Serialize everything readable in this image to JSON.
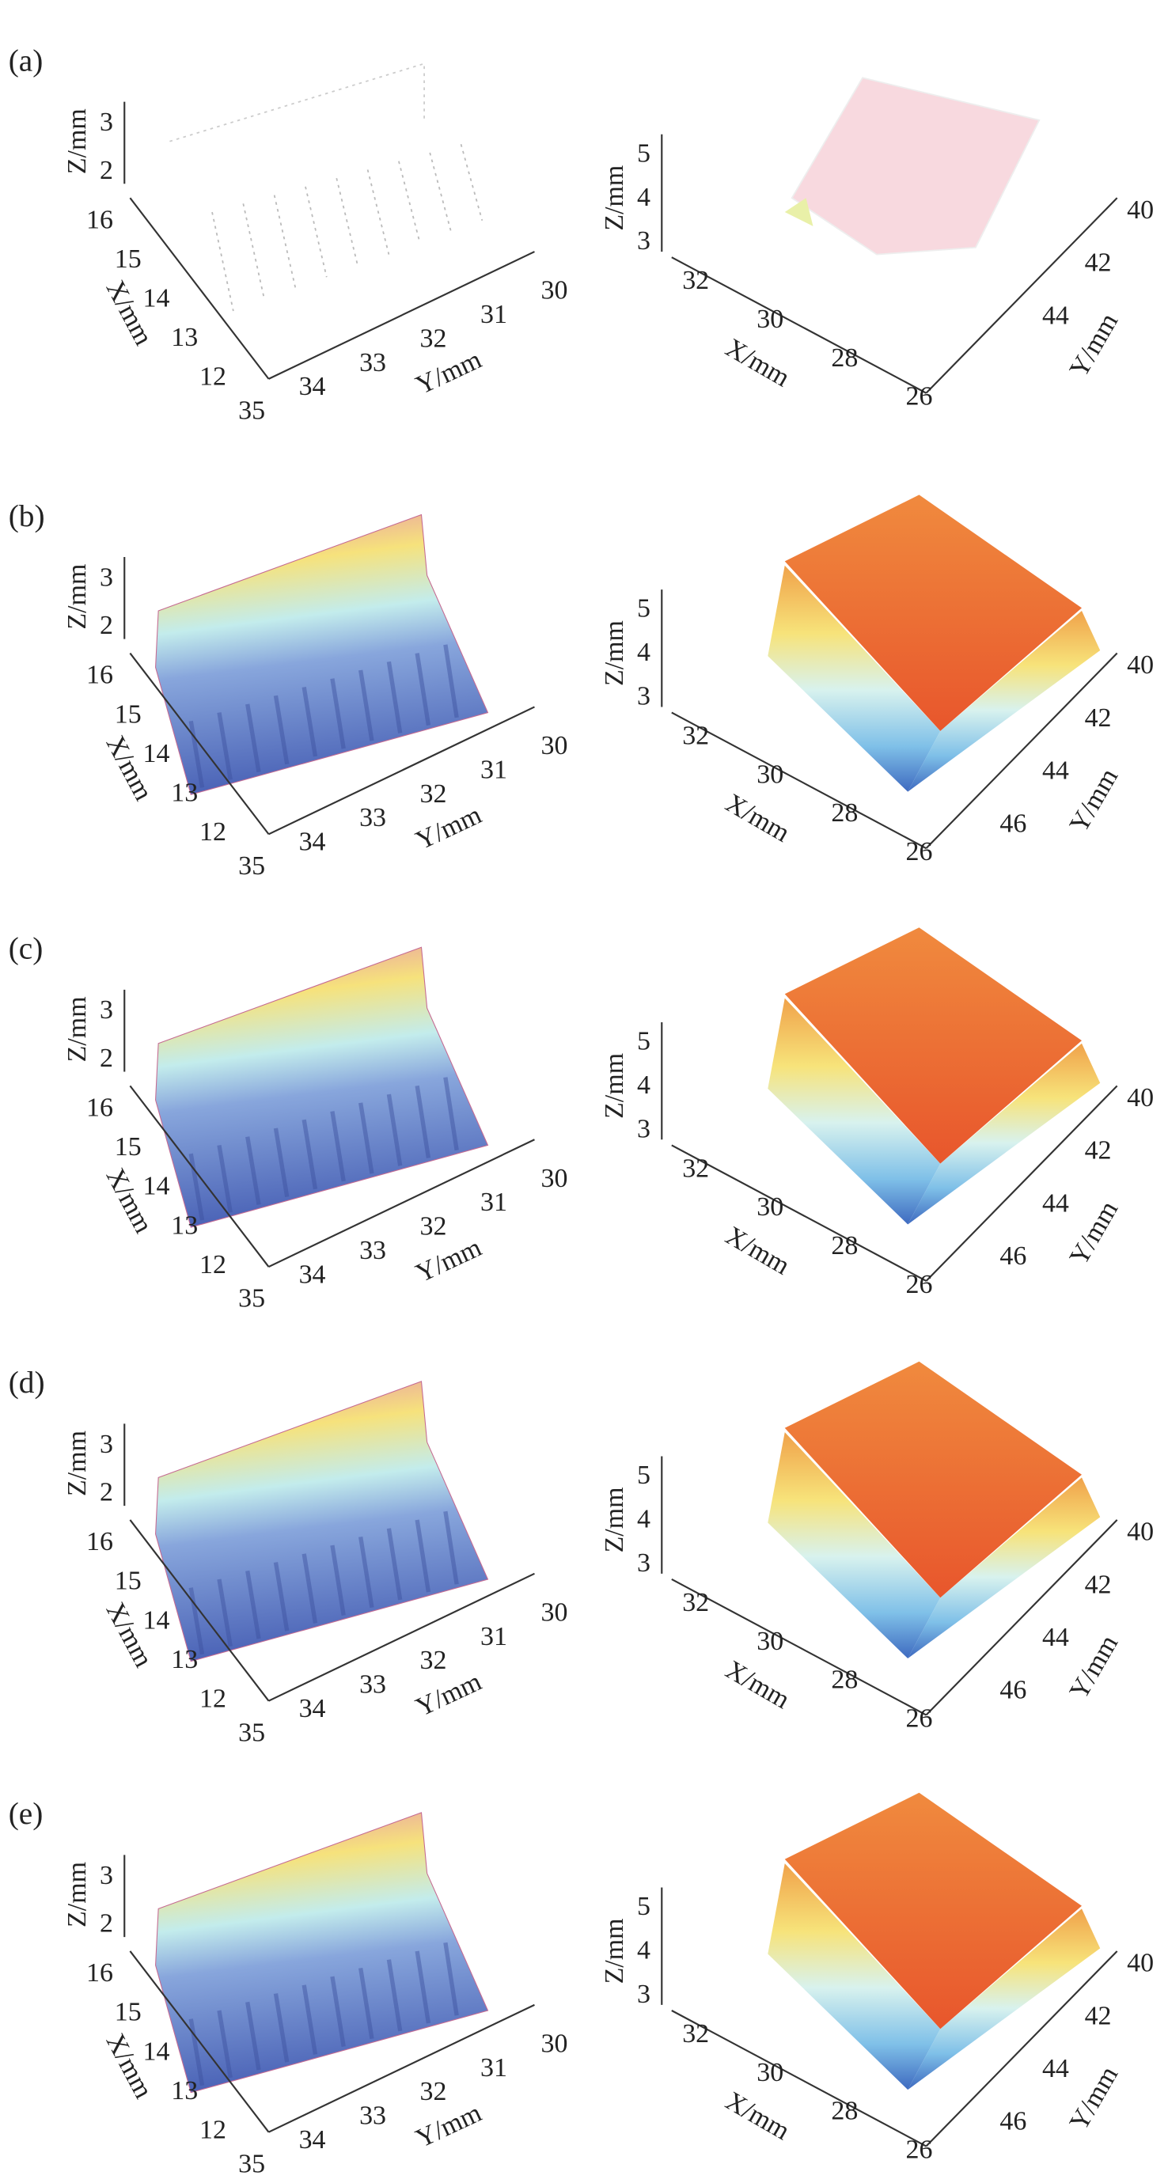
{
  "panels": [
    {
      "label": "(a)",
      "left": {
        "z_label": "Z/mm",
        "x_label": "X/mm",
        "y_label": "Y/mm",
        "z_ticks": [
          "2",
          "3"
        ],
        "x_ticks": [
          "12",
          "13",
          "14",
          "15",
          "16"
        ],
        "y_ticks": [
          "35",
          "34",
          "33",
          "32",
          "31",
          "30"
        ]
      },
      "right": {
        "z_label": "Z/mm",
        "x_label": "X/mm",
        "y_label": "Y/mm",
        "z_ticks": [
          "3",
          "4",
          "5"
        ],
        "x_ticks": [
          "32",
          "30",
          "28",
          "26"
        ],
        "y_ticks": [
          "40",
          "42",
          "44"
        ]
      }
    },
    {
      "label": "(b)",
      "left": {
        "z_label": "Z/mm",
        "x_label": "X/mm",
        "y_label": "Y/mm",
        "z_ticks": [
          "2",
          "3"
        ],
        "x_ticks": [
          "12",
          "13",
          "14",
          "15",
          "16"
        ],
        "y_ticks": [
          "35",
          "34",
          "33",
          "32",
          "31",
          "30"
        ]
      },
      "right": {
        "z_label": "Z/mm",
        "x_label": "X/mm",
        "y_label": "Y/mm",
        "z_ticks": [
          "3",
          "4",
          "5"
        ],
        "x_ticks": [
          "32",
          "30",
          "28",
          "26"
        ],
        "y_ticks": [
          "40",
          "42",
          "44",
          "46"
        ]
      }
    },
    {
      "label": "(c)",
      "left": {
        "z_label": "Z/mm",
        "x_label": "X/mm",
        "y_label": "Y/mm",
        "z_ticks": [
          "2",
          "3"
        ],
        "x_ticks": [
          "12",
          "13",
          "14",
          "15",
          "16"
        ],
        "y_ticks": [
          "35",
          "34",
          "33",
          "32",
          "31",
          "30"
        ]
      },
      "right": {
        "z_label": "Z/mm",
        "x_label": "X/mm",
        "y_label": "Y/mm",
        "z_ticks": [
          "3",
          "4",
          "5"
        ],
        "x_ticks": [
          "32",
          "30",
          "28",
          "26"
        ],
        "y_ticks": [
          "40",
          "42",
          "44",
          "46"
        ]
      }
    },
    {
      "label": "(d)",
      "left": {
        "z_label": "Z/mm",
        "x_label": "X/mm",
        "y_label": "Y/mm",
        "z_ticks": [
          "2",
          "3"
        ],
        "x_ticks": [
          "12",
          "13",
          "14",
          "15",
          "16"
        ],
        "y_ticks": [
          "35",
          "34",
          "33",
          "32",
          "31",
          "30"
        ]
      },
      "right": {
        "z_label": "Z/mm",
        "x_label": "X/mm",
        "y_label": "Y/mm",
        "z_ticks": [
          "3",
          "4",
          "5"
        ],
        "x_ticks": [
          "32",
          "30",
          "28",
          "26"
        ],
        "y_ticks": [
          "40",
          "42",
          "44",
          "46"
        ]
      }
    },
    {
      "label": "(e)",
      "left": {
        "z_label": "Z/mm",
        "x_label": "X/mm",
        "y_label": "Y/mm",
        "z_ticks": [
          "2",
          "3"
        ],
        "x_ticks": [
          "12",
          "13",
          "14",
          "15",
          "16"
        ],
        "y_ticks": [
          "35",
          "34",
          "33",
          "32",
          "31",
          "30"
        ]
      },
      "right": {
        "z_label": "Z/mm",
        "x_label": "X/mm",
        "y_label": "Y/mm",
        "z_ticks": [
          "3",
          "4",
          "5"
        ],
        "x_ticks": [
          "32",
          "30",
          "28",
          "26"
        ],
        "y_ticks": [
          "40",
          "42",
          "44",
          "46"
        ]
      }
    }
  ]
}
